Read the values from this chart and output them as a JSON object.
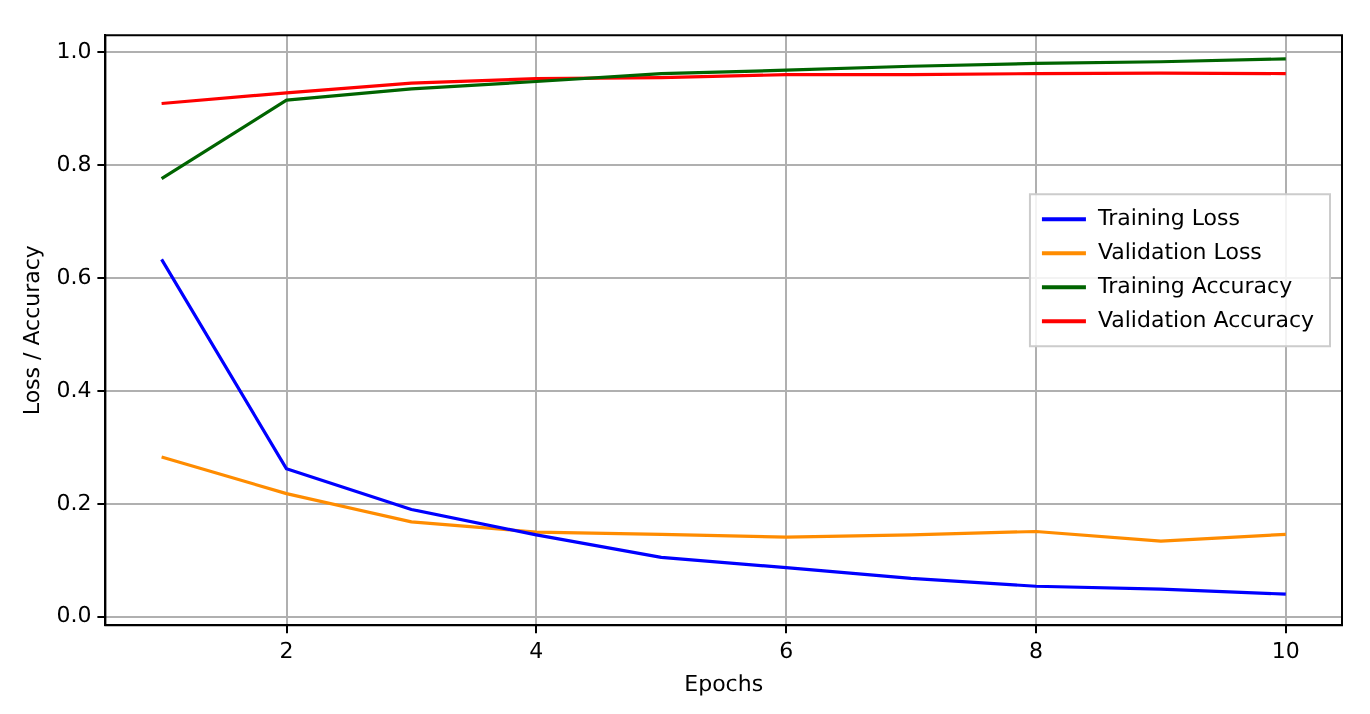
{
  "chart_data": {
    "type": "line",
    "xlabel": "Epochs",
    "ylabel": "Loss / Accuracy",
    "x": [
      1,
      2,
      3,
      4,
      5,
      6,
      7,
      8,
      9,
      10
    ],
    "series": [
      {
        "name": "Training Loss",
        "color": "#0000ff",
        "values": [
          0.633,
          0.262,
          0.19,
          0.145,
          0.105,
          0.087,
          0.068,
          0.054,
          0.049,
          0.04
        ]
      },
      {
        "name": "Validation Loss",
        "color": "#ff8c00",
        "values": [
          0.283,
          0.218,
          0.168,
          0.15,
          0.146,
          0.141,
          0.145,
          0.151,
          0.134,
          0.146
        ]
      },
      {
        "name": "Training Accuracy",
        "color": "#006400",
        "values": [
          0.776,
          0.915,
          0.935,
          0.948,
          0.962,
          0.968,
          0.975,
          0.98,
          0.983,
          0.988
        ]
      },
      {
        "name": "Validation Accuracy",
        "color": "#ff0000",
        "values": [
          0.909,
          0.928,
          0.945,
          0.953,
          0.955,
          0.96,
          0.96,
          0.962,
          0.963,
          0.962
        ]
      }
    ],
    "xlim": [
      0.55,
      10.45
    ],
    "ylim": [
      -0.015,
      1.03
    ],
    "xticks": [
      2,
      4,
      6,
      8,
      10
    ],
    "yticks": [
      {
        "value": 0,
        "label": "0.0"
      },
      {
        "value": 0.2,
        "label": "0.2"
      },
      {
        "value": 0.4,
        "label": "0.4"
      },
      {
        "value": 0.6,
        "label": "0.6"
      },
      {
        "value": 0.8,
        "label": "0.8"
      },
      {
        "value": 1,
        "label": "1.0"
      }
    ],
    "grid": true,
    "legend": "right",
    "marker": "none",
    "line_style": "solid"
  }
}
